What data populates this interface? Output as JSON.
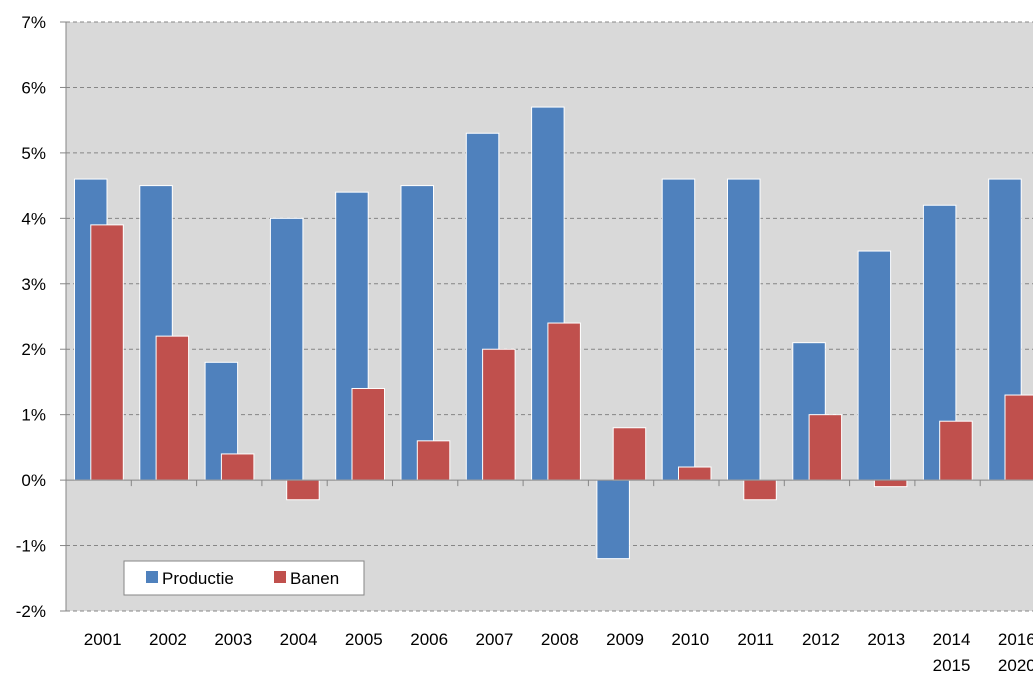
{
  "chart_data": {
    "type": "bar",
    "categories": [
      [
        "2001"
      ],
      [
        "2002"
      ],
      [
        "2003"
      ],
      [
        "2004"
      ],
      [
        "2005"
      ],
      [
        "2006"
      ],
      [
        "2007"
      ],
      [
        "2008"
      ],
      [
        "2009"
      ],
      [
        "2010"
      ],
      [
        "2011"
      ],
      [
        "2012"
      ],
      [
        "2013"
      ],
      [
        "2014",
        "2015"
      ],
      [
        "2016",
        "2020"
      ]
    ],
    "series": [
      {
        "name": "Productie",
        "color": "#4f81bd",
        "values": [
          4.6,
          4.5,
          1.8,
          4.0,
          4.4,
          4.5,
          5.3,
          5.7,
          -1.2,
          4.6,
          4.6,
          2.1,
          3.5,
          4.2,
          4.6
        ]
      },
      {
        "name": "Banen",
        "color": "#c0504d",
        "values": [
          3.9,
          2.2,
          0.4,
          -0.3,
          1.4,
          0.6,
          2.0,
          2.4,
          0.8,
          0.2,
          -0.3,
          1.0,
          -0.1,
          0.9,
          1.3
        ]
      }
    ],
    "title": "",
    "xlabel": "",
    "ylabel": "",
    "ylim": [
      -2,
      7
    ],
    "yticks": [
      "-2%",
      "-1%",
      "0%",
      "1%",
      "2%",
      "3%",
      "4%",
      "5%",
      "6%",
      "7%"
    ],
    "grid": true,
    "legend": "bottom-left",
    "plot_background": "#d9d9d9"
  }
}
